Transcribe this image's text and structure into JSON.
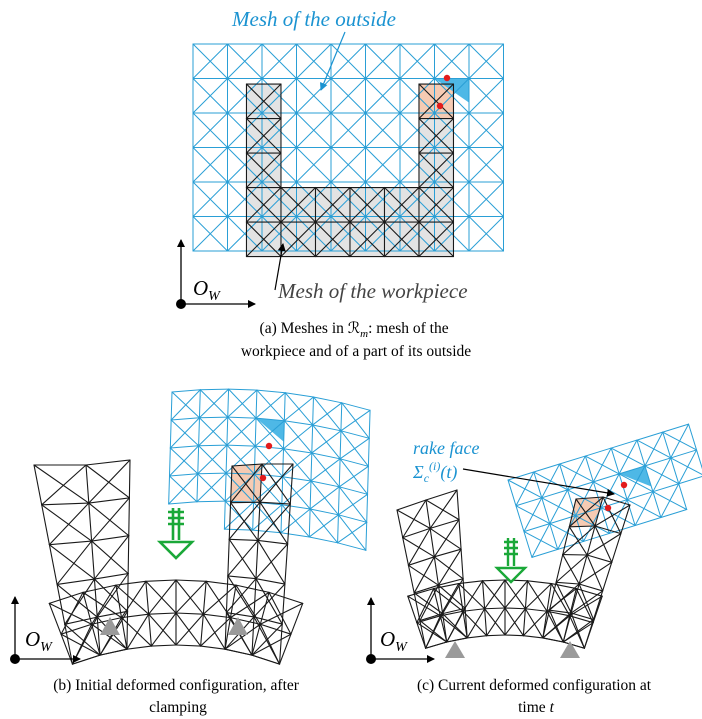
{
  "labels": {
    "mesh_outside": "Mesh of the outside",
    "mesh_workpiece": "Mesh of the workpiece",
    "rake_face": "rake face",
    "origin_a": "O",
    "origin_b": "O",
    "origin_c": "O",
    "origin_sub": "W",
    "sigma_main": "Σ",
    "sigma_sub": "c",
    "sigma_sup": "(i)",
    "sigma_arg": "(t)"
  },
  "captions": {
    "a_line1": "(a) Meshes in ℛ",
    "a_line1_sub": "m",
    "a_line1_rest": ": mesh of the",
    "a_line2": "workpiece and of a part of its outside",
    "b_line1": "(b) Initial deformed configuration, after",
    "b_line2": "clamping",
    "c_line1": "(c) Current deformed configuration at",
    "c_line2": "time ",
    "c_line2_var": "t"
  },
  "colors": {
    "outside_mesh": "#2a9fd6",
    "workpiece_mesh": "#1a1a1a",
    "workpiece_fill": "#e3e3e3",
    "tool_blue": "#4eb8e6",
    "tool_orange": "#f6cbb3",
    "dot_red": "#e31b1b",
    "label_blue": "#1b93d1",
    "clamp_green": "#1aa838",
    "support_gray": "#9a9a9a",
    "axis": "#000000"
  }
}
